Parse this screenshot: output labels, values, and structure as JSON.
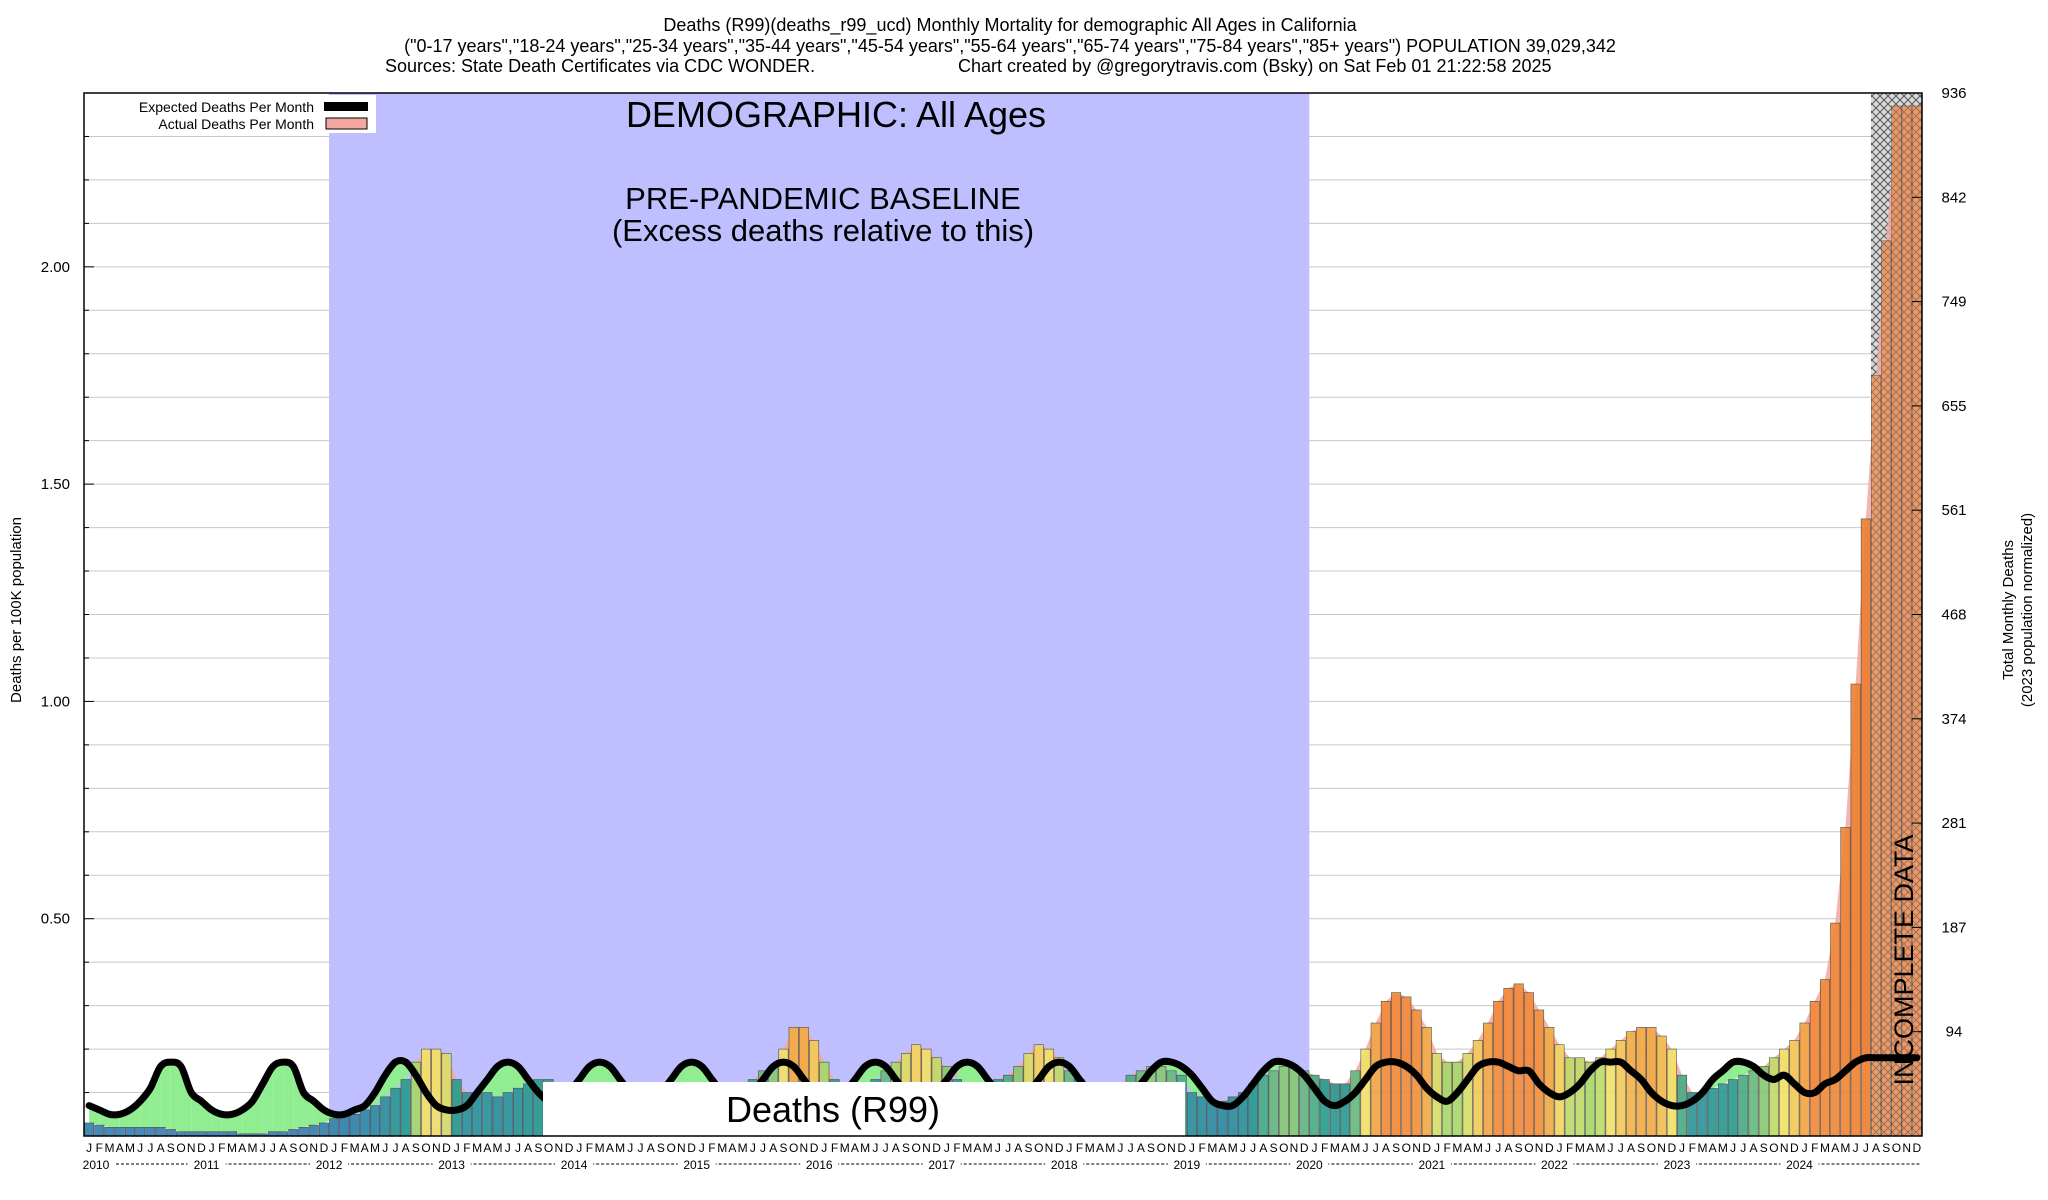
{
  "header": {
    "line1": "Deaths (R99)(deaths_r99_ucd) Monthly Mortality for demographic All Ages in California",
    "line2": "(\"0-17 years\",\"18-24 years\",\"25-34 years\",\"35-44 years\",\"45-54 years\",\"55-64 years\",\"65-74 years\",\"75-84 years\",\"85+ years\") POPULATION 39,029,342",
    "line3a": "Sources: State Death Certificates via CDC WONDER.",
    "line3b": "Chart created by @gregorytravis.com (Bsky) on Sat Feb 01 21:22:58 2025"
  },
  "legend": {
    "expected_label": "Expected Deaths Per Month",
    "actual_label": "Actual Deaths Per Month"
  },
  "annotations": {
    "demographic": "DEMOGRAPHIC: All Ages",
    "baseline_line1": "PRE-PANDEMIC BASELINE",
    "baseline_line2": "(Excess deaths relative to this)",
    "cause_box": "Deaths (R99)",
    "incomplete": "INCOMPLETE DATA"
  },
  "colors": {
    "baseline_band": "#bfbfff",
    "expected_line": "#000000",
    "actual_area": "#f2a8a0",
    "below_expected_area": "#90ee90",
    "grid": "#c8c8c8"
  },
  "chart_data": {
    "type": "bar",
    "title": "Deaths (R99)(deaths_r99_ucd) Monthly Mortality for demographic All Ages in California",
    "ylabel": "Deaths per 100K population",
    "y2label": "Total Monthly Deaths",
    "y2sublabel": "(2023 population normalized)",
    "ylim": [
      0,
      2.4
    ],
    "yticks": [
      "0.50",
      "1.00",
      "1.50",
      "2.00"
    ],
    "y2ticks": [
      "94",
      "187",
      "281",
      "374",
      "468",
      "561",
      "655",
      "749",
      "842",
      "936"
    ],
    "grid": true,
    "legend_position": "top-left",
    "month_labels": [
      "J",
      "F",
      "M",
      "A",
      "M",
      "J",
      "J",
      "A",
      "S",
      "O",
      "N",
      "D"
    ],
    "years": [
      "2010",
      "2011",
      "2012",
      "2013",
      "2014",
      "2015",
      "2016",
      "2017",
      "2018",
      "2019",
      "2020",
      "2021",
      "2022",
      "2023",
      "2024"
    ],
    "baseline_period": [
      "2012-01",
      "2019-12"
    ],
    "incomplete_period": [
      "2024-08",
      "2024-12"
    ],
    "series": [
      {
        "name": "Actual Deaths Per Month",
        "values": [
          0.03,
          0.025,
          0.02,
          0.02,
          0.02,
          0.02,
          0.02,
          0.02,
          0.015,
          0.01,
          0.01,
          0.01,
          0.01,
          0.01,
          0.01,
          0.005,
          0.005,
          0.005,
          0.01,
          0.01,
          0.015,
          0.02,
          0.025,
          0.03,
          0.04,
          0.045,
          0.05,
          0.06,
          0.07,
          0.09,
          0.11,
          0.13,
          0.17,
          0.2,
          0.2,
          0.19,
          0.13,
          0.1,
          0.1,
          0.1,
          0.09,
          0.1,
          0.11,
          0.12,
          0.13,
          0.13,
          0.12,
          0.11,
          0.09,
          0.08,
          0.07,
          0.06,
          0.05,
          0.05,
          0.06,
          0.07,
          0.08,
          0.09,
          0.1,
          0.1,
          0.11,
          0.1,
          0.09,
          0.1,
          0.12,
          0.13,
          0.15,
          0.16,
          0.2,
          0.25,
          0.25,
          0.22,
          0.17,
          0.13,
          0.11,
          0.11,
          0.12,
          0.13,
          0.15,
          0.17,
          0.19,
          0.21,
          0.2,
          0.18,
          0.16,
          0.13,
          0.11,
          0.11,
          0.12,
          0.13,
          0.14,
          0.16,
          0.19,
          0.21,
          0.2,
          0.18,
          0.15,
          0.13,
          0.12,
          0.11,
          0.11,
          0.12,
          0.14,
          0.15,
          0.16,
          0.16,
          0.15,
          0.14,
          0.1,
          0.09,
          0.08,
          0.08,
          0.09,
          0.1,
          0.12,
          0.14,
          0.15,
          0.16,
          0.16,
          0.15,
          0.14,
          0.13,
          0.12,
          0.12,
          0.15,
          0.2,
          0.26,
          0.31,
          0.33,
          0.32,
          0.29,
          0.25,
          0.19,
          0.17,
          0.17,
          0.19,
          0.22,
          0.26,
          0.31,
          0.34,
          0.35,
          0.33,
          0.29,
          0.25,
          0.21,
          0.18,
          0.18,
          0.17,
          0.18,
          0.2,
          0.22,
          0.24,
          0.25,
          0.25,
          0.23,
          0.2,
          0.14,
          0.1,
          0.1,
          0.11,
          0.12,
          0.13,
          0.14,
          0.15,
          0.16,
          0.18,
          0.2,
          0.22,
          0.26,
          0.31,
          0.36,
          0.49,
          0.71,
          1.04,
          1.42,
          1.75,
          2.06,
          2.37,
          2.37,
          2.37
        ]
      },
      {
        "name": "Expected Deaths Per Month",
        "values": [
          0.07,
          0.06,
          0.05,
          0.05,
          0.06,
          0.08,
          0.11,
          0.16,
          0.17,
          0.16,
          0.1,
          0.08,
          0.06,
          0.05,
          0.05,
          0.06,
          0.08,
          0.12,
          0.16,
          0.17,
          0.16,
          0.1,
          0.08,
          0.06,
          0.05,
          0.05,
          0.06,
          0.07,
          0.1,
          0.14,
          0.17,
          0.17,
          0.14,
          0.1,
          0.07,
          0.06,
          0.06,
          0.07,
          0.1,
          0.13,
          0.16,
          0.17,
          0.16,
          0.13,
          0.1,
          0.08,
          0.08,
          0.1,
          0.13,
          0.16,
          0.17,
          0.16,
          0.13,
          0.1,
          0.08,
          0.08,
          0.1,
          0.13,
          0.16,
          0.17,
          0.16,
          0.13,
          0.1,
          0.08,
          0.08,
          0.1,
          0.13,
          0.16,
          0.17,
          0.16,
          0.13,
          0.1,
          0.08,
          0.08,
          0.1,
          0.13,
          0.16,
          0.17,
          0.16,
          0.13,
          0.1,
          0.08,
          0.08,
          0.1,
          0.13,
          0.16,
          0.17,
          0.16,
          0.13,
          0.1,
          0.08,
          0.08,
          0.1,
          0.13,
          0.16,
          0.17,
          0.16,
          0.13,
          0.1,
          0.08,
          0.07,
          0.08,
          0.1,
          0.12,
          0.15,
          0.17,
          0.17,
          0.16,
          0.14,
          0.11,
          0.08,
          0.07,
          0.07,
          0.09,
          0.12,
          0.15,
          0.17,
          0.17,
          0.16,
          0.14,
          0.11,
          0.08,
          0.07,
          0.08,
          0.1,
          0.13,
          0.16,
          0.17,
          0.17,
          0.16,
          0.14,
          0.11,
          0.09,
          0.08,
          0.1,
          0.13,
          0.16,
          0.17,
          0.17,
          0.16,
          0.15,
          0.15,
          0.12,
          0.1,
          0.09,
          0.1,
          0.12,
          0.15,
          0.17,
          0.17,
          0.17,
          0.15,
          0.13,
          0.1,
          0.08,
          0.07,
          0.07,
          0.08,
          0.1,
          0.13,
          0.15,
          0.17,
          0.17,
          0.16,
          0.14,
          0.13,
          0.14,
          0.12,
          0.1,
          0.1,
          0.12,
          0.13,
          0.15,
          0.17,
          0.18,
          0.18,
          0.18,
          0.18,
          0.18,
          0.18
        ]
      }
    ]
  }
}
